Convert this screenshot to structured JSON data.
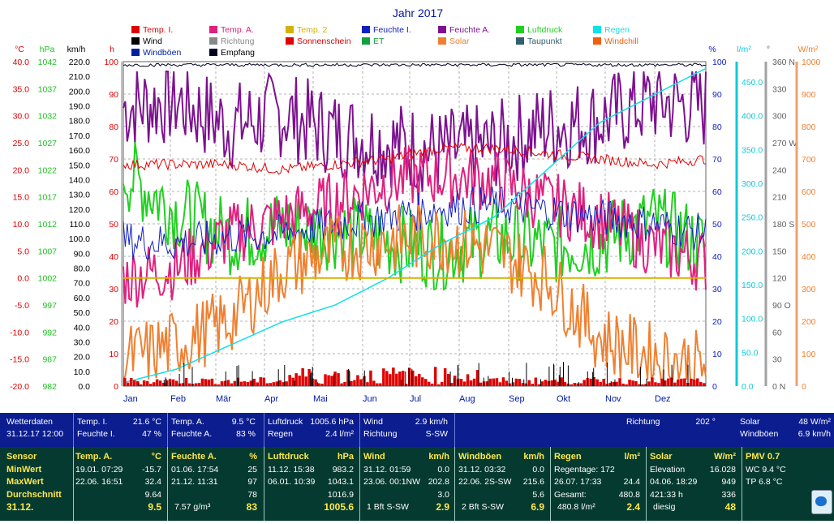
{
  "title": "Jahr 2017",
  "legend": [
    {
      "name": "Temp. I.",
      "color": "#e00000"
    },
    {
      "name": "Temp. A.",
      "color": "#e0207f"
    },
    {
      "name": "Temp. 2",
      "color": "#d8b000"
    },
    {
      "name": "Feuchte I.",
      "color": "#1020c0"
    },
    {
      "name": "Feuchte A.",
      "color": "#7d1190"
    },
    {
      "name": "Luftdruck",
      "color": "#20d020"
    },
    {
      "name": "Regen",
      "color": "#10e0e8"
    },
    {
      "name": "Wind",
      "color": "#000000"
    },
    {
      "name": "Richtung",
      "color": "#888888"
    },
    {
      "name": "Sonnenschein",
      "color": "#e00000"
    },
    {
      "name": "ET",
      "color": "#10a040"
    },
    {
      "name": "Solar",
      "color": "#f08030"
    },
    {
      "name": "Taupunkt",
      "color": "#306070"
    },
    {
      "name": "Windchill",
      "color": "#f06010"
    },
    {
      "name": "Windböen",
      "color": "#0020a0"
    },
    {
      "name": "Empfang",
      "color": "#000020"
    }
  ],
  "chart_data": {
    "type": "line",
    "title": "Jahr 2017",
    "x_ticks": [
      "Jan",
      "Feb",
      "Mär",
      "Apr",
      "Mai",
      "Jun",
      "Jul",
      "Aug",
      "Sep",
      "Okt",
      "Nov",
      "Dez"
    ],
    "axes": {
      "temp": {
        "unit": "°C",
        "min": -20,
        "max": 40,
        "ticks": [
          "40.0",
          "35.0",
          "30.0",
          "25.0",
          "20.0",
          "15.0",
          "10.0",
          "5.0",
          "0.0",
          "-5.0",
          "-10.0",
          "-15.0",
          "-20.0"
        ]
      },
      "press": {
        "unit": "hPa",
        "ticks": [
          "1042",
          "1037",
          "1032",
          "1027",
          "1022",
          "1017",
          "1012",
          "1007",
          "1002",
          "997",
          "992",
          "987",
          "982"
        ]
      },
      "wind": {
        "unit": "km/h",
        "min": 0,
        "max": 220,
        "ticks": [
          "220.0",
          "210.0",
          "200.0",
          "190.0",
          "180.0",
          "170.0",
          "160.0",
          "150.0",
          "140.0",
          "130.0",
          "120.0",
          "110.0",
          "100.0",
          "90.0",
          "80.0",
          "70.0",
          "60.0",
          "50.0",
          "40.0",
          "30.0",
          "20.0",
          "10.0",
          "0.0"
        ]
      },
      "sun": {
        "unit": "h",
        "ticks": [
          "100",
          "90",
          "80",
          "70",
          "60",
          "50",
          "40",
          "30",
          "20",
          "10",
          "0"
        ]
      },
      "hum": {
        "unit": "%",
        "ticks": [
          "100",
          "90",
          "80",
          "70",
          "60",
          "50",
          "40",
          "30",
          "20",
          "10",
          "0"
        ]
      },
      "rain": {
        "unit": "l/m²",
        "ticks": [
          "450.0",
          "400.0",
          "350.0",
          "300.0",
          "250.0",
          "200.0",
          "150.0",
          "100.0",
          "50.0",
          "0.0"
        ]
      },
      "dir": {
        "unit": "°",
        "ticks": [
          "360 N",
          "330",
          "300",
          "270 W",
          "240",
          "210",
          "180 S",
          "150",
          "120",
          "90 O",
          "60",
          "30",
          "0 N"
        ]
      },
      "solar": {
        "unit": "W/m²",
        "ticks": [
          "1000",
          "900",
          "800",
          "700",
          "600",
          "500",
          "400",
          "300",
          "200",
          "100",
          "0"
        ]
      }
    },
    "series": [
      {
        "name": "Feuchte A.",
        "axis": "hum",
        "values": [
          86,
          88,
          80,
          84,
          78,
          75,
          72,
          74,
          80,
          82,
          88,
          86
        ]
      },
      {
        "name": "Luftdruck",
        "axis": "press",
        "values": [
          1025,
          1017,
          1012,
          1014,
          1013,
          1011,
          1009,
          1012,
          1010,
          1011,
          1015,
          1010
        ]
      },
      {
        "name": "Temp. A.",
        "axis": "temp",
        "values": [
          0,
          2,
          8,
          11,
          14,
          18,
          19,
          18,
          14,
          11,
          6,
          3
        ]
      },
      {
        "name": "Temp. I.",
        "axis": "temp",
        "values": [
          21,
          21,
          21,
          20,
          21,
          22,
          24,
          24,
          23,
          22,
          21,
          22
        ]
      },
      {
        "name": "Feuchte I.",
        "axis": "hum",
        "values": [
          45,
          44,
          46,
          47,
          50,
          52,
          55,
          56,
          54,
          52,
          50,
          47
        ]
      },
      {
        "name": "Solar",
        "axis": "solar",
        "values": [
          80,
          130,
          200,
          360,
          420,
          450,
          460,
          420,
          330,
          150,
          90,
          60
        ]
      },
      {
        "name": "Regen",
        "axis": "rain",
        "values": [
          5,
          25,
          60,
          95,
          120,
          160,
          210,
          250,
          320,
          390,
          430,
          470
        ]
      },
      {
        "name": "Temp. 2",
        "axis": "temp",
        "values": [
          0,
          0,
          0,
          0,
          0,
          0,
          0,
          0,
          0,
          0,
          0,
          0
        ]
      },
      {
        "name": "Empfang",
        "axis": "hum",
        "values": [
          99,
          99,
          99,
          99,
          99,
          99,
          99,
          99,
          99,
          99,
          99,
          99
        ]
      }
    ]
  },
  "current": {
    "wetterdaten_label": "Wetterdaten",
    "datetime": "31.12.17 12:00",
    "temp_i_label": "Temp. I.",
    "temp_i": "21.6 °C",
    "feuchte_i_label": "Feuchte I.",
    "feuchte_i": "47 %",
    "temp_a_label": "Temp. A.",
    "temp_a": "9.5 °C",
    "feuchte_a_label": "Feuchte A.",
    "feuchte_a": "83 %",
    "luftdruck_label": "Luftdruck",
    "luftdruck": "1005.6 hPa",
    "regen_label": "Regen",
    "regen": "2.4 l/m²",
    "wind_label": "Wind",
    "wind": "2.9 km/h",
    "richtung_label": "Richtung",
    "richtung": "S-SW",
    "richtung2_label": "Richtung",
    "richtung2": "202 °",
    "solar_label": "Solar",
    "solar": "48 W/m²",
    "windboeen_label": "Windböen",
    "windboeen": "6.9 km/h"
  },
  "stats": {
    "sensor_label": "Sensor",
    "min_label": "MinWert",
    "max_label": "MaxWert",
    "avg_label": "Durchschnitt",
    "date": "31.12.",
    "temp_a": {
      "h": "Temp. A.",
      "u": "°C",
      "min_d": "19.01.  07:29",
      "min": "-15.7",
      "max_d": "22.06.  16:51",
      "max": "32.4",
      "avg": "9.64",
      "cur": "9.5"
    },
    "feuchte_a": {
      "h": "Feuchte A.",
      "u": "%",
      "min_d": "01.06.  17:54",
      "min": "25",
      "max_d": "21.12.  11:31",
      "max": "97",
      "avg": "78",
      "cur_l": "7.57 g/m³",
      "cur": "83"
    },
    "luftdruck": {
      "h": "Luftdruck",
      "u": "hPa",
      "min_d": "11.12.  15:38",
      "min": "983.2",
      "max_d": "06.01.  10:39",
      "max": "1043.1",
      "avg": "1016.9",
      "cur": "1005.6"
    },
    "wind": {
      "h": "Wind",
      "u": "km/h",
      "min_d": "31.12.  01:59",
      "min": "0.0",
      "max_d": "23.06.  00:1NW",
      "max": "202.8",
      "avg": "3.0",
      "cur_l": "1 Bft S-SW",
      "cur": "2.9"
    },
    "windboeen": {
      "h": "Windböen",
      "u": "km/h",
      "min_d": "31.12.  03:32",
      "min": "0.0",
      "max_d": "22.06.  2S-SW",
      "max": "215.6",
      "avg": "5.6",
      "cur_l": "2 Bft S-SW",
      "cur": "6.9"
    },
    "regen": {
      "h": "Regen",
      "u": "l/m²",
      "l1": "Regentage: 172",
      "l2": "26.07.  17:33",
      "v2": "24.4",
      "l3": "Gesamt:",
      "v3": "480.8",
      "cur_l": "480.8 l/m²",
      "cur": "2.4"
    },
    "solar": {
      "h": "Solar",
      "u": "W/m²",
      "l1": "Elevation",
      "v1": "16.028",
      "l2": "04.06.  18:29",
      "v2": "949",
      "l3": "421:33 h",
      "v3": "336",
      "cur_l": "diesig",
      "cur": "48"
    },
    "pmv": {
      "h": "PMV 0.7",
      "l1": "WC 9.4 °C",
      "l2": "TP 6.8 °C"
    }
  }
}
